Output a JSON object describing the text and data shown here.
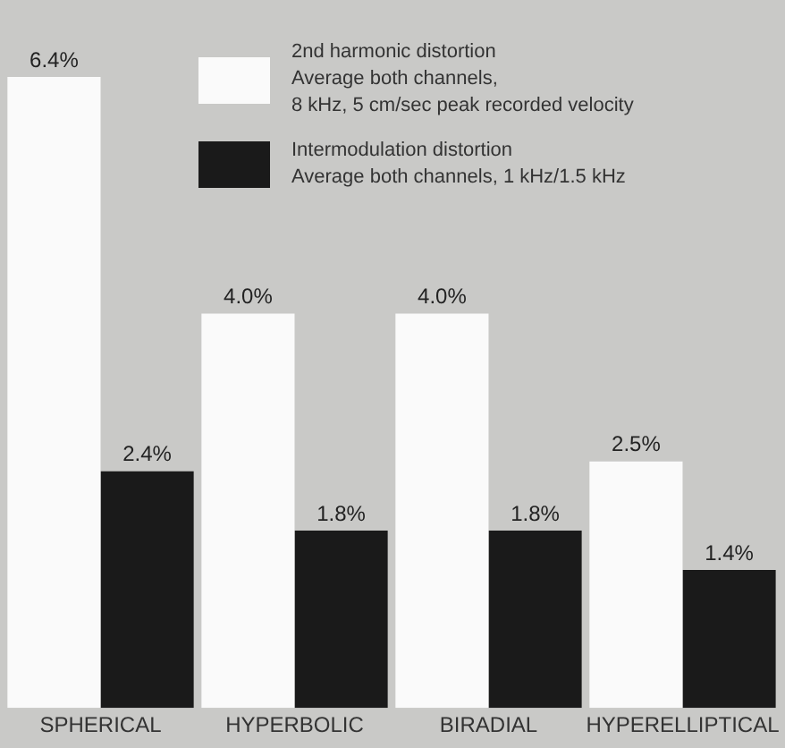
{
  "chart_data": {
    "type": "bar",
    "categories": [
      "SPHERICAL",
      "HYPERBOLIC",
      "BIRADIAL",
      "HYPERELLIPTICAL"
    ],
    "series": [
      {
        "name": "2nd harmonic distortion\nAverage both channels,\n8 kHz, 5 cm/sec peak recorded velocity",
        "color": "#fafafa",
        "values": [
          6.4,
          4.0,
          4.0,
          2.5
        ],
        "value_labels": [
          "6.4%",
          "4.0%",
          "4.0%",
          "2.5%"
        ]
      },
      {
        "name": "Intermodulation distortion\nAverage both channels, 1 kHz/1.5 kHz",
        "color": "#1a1a1a",
        "values": [
          2.4,
          1.8,
          1.8,
          1.4
        ],
        "value_labels": [
          "2.4%",
          "1.8%",
          "1.8%",
          "1.4%"
        ]
      }
    ],
    "legend": "top right",
    "grid": false
  }
}
